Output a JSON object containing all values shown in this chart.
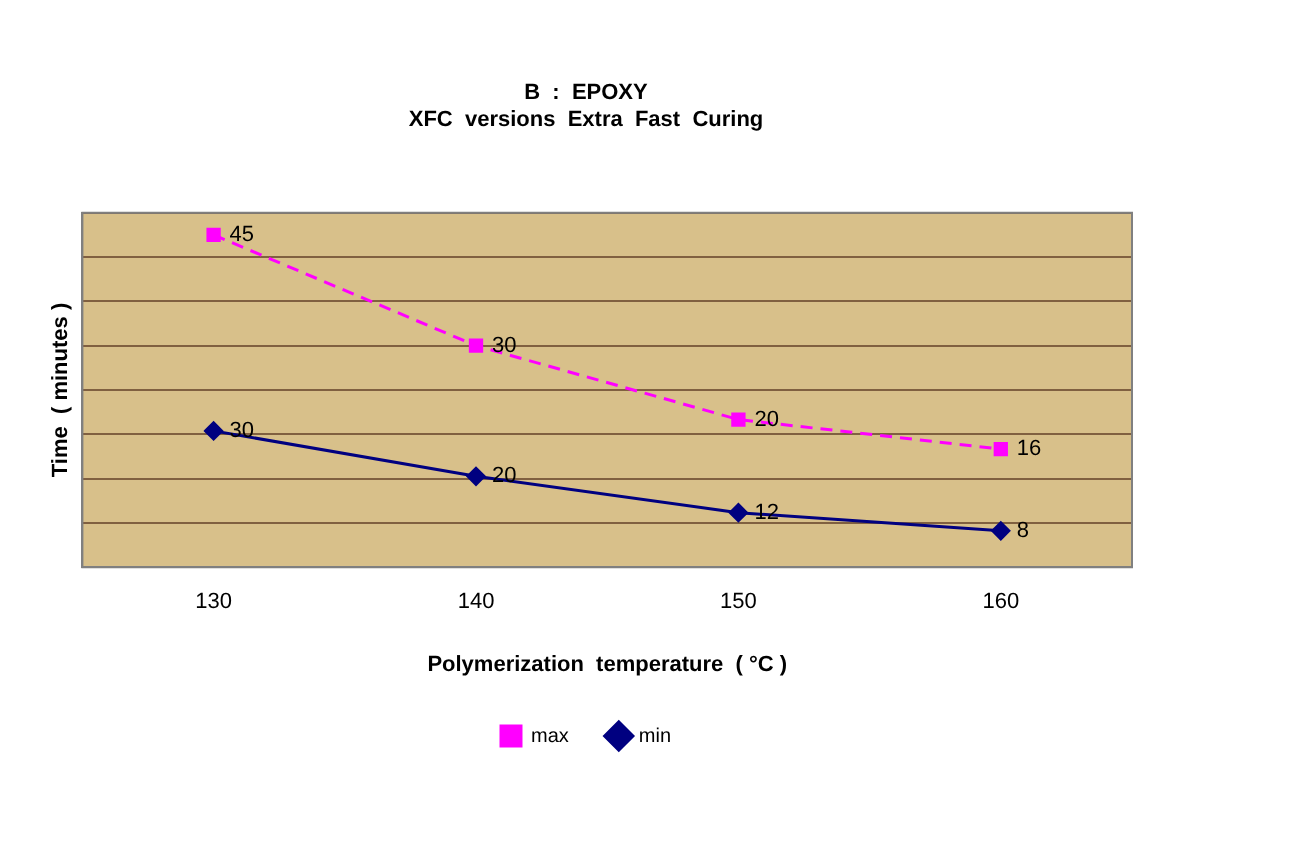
{
  "chart_data": {
    "type": "line",
    "title": "B  :  EPOXY",
    "subtitle": "XFC  versions  Extra  Fast  Curing",
    "xlabel": "Polymerization  temperature  ( °C )",
    "ylabel": "Time  ( minutes )",
    "categories": [
      "130",
      "140",
      "150",
      "160"
    ],
    "series": [
      {
        "name": "max",
        "color": "#ff00ff",
        "values": [
          45,
          30,
          20,
          16
        ],
        "marker": "square",
        "line_style": "dashed"
      },
      {
        "name": "min",
        "color": "#000080",
        "values": [
          30,
          20,
          12,
          8
        ],
        "axis": "y2",
        "marker": "diamond",
        "line_style": "solid"
      }
    ],
    "ylim": [
      0,
      48
    ],
    "yticks": [
      {
        "value": 0,
        "label": null
      },
      {
        "value": 6,
        "label": null
      },
      {
        "value": 12,
        "label": null
      },
      {
        "value": 18,
        "label": null
      },
      {
        "value": 24,
        "label": null
      },
      {
        "value": 30,
        "label": null
      },
      {
        "value": 36,
        "label": null
      },
      {
        "value": 42,
        "label": null
      },
      {
        "value": 48,
        "label": null
      }
    ],
    "y2lim": [
      0,
      78
    ],
    "tick_labels": "x",
    "grid": "y",
    "legend": "bottom",
    "data_labels": true
  }
}
